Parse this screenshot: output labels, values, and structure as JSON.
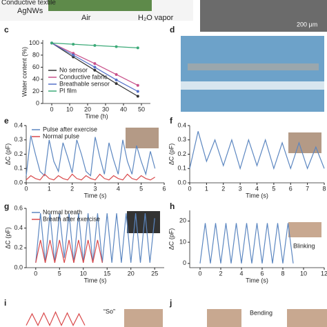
{
  "figure_texts": {
    "top_left": "Conductive textile",
    "agnws": "AgNWs",
    "air": "Air",
    "vapor": "H₂O vapor",
    "scale": "200 μm",
    "i_note": "“So”",
    "j_note": "Bending",
    "h_note": "Blinking"
  },
  "panel_labels": [
    "c",
    "d",
    "e",
    "f",
    "g",
    "h",
    "i",
    "j"
  ],
  "chart_data": [
    {
      "type": "line",
      "xlabel": "Time (h)",
      "ylabel": "Water content (%)",
      "xlim": [
        -5,
        55
      ],
      "ylim": [
        0,
        105
      ],
      "xticks": [
        0,
        10,
        20,
        30,
        40,
        50
      ],
      "yticks": [
        0,
        20,
        40,
        60,
        80,
        100
      ],
      "legend": "lower left",
      "x": [
        0,
        12,
        24,
        36,
        48
      ],
      "series": [
        {
          "name": "No sensor",
          "color": "#333333",
          "values": [
            100,
            77,
            55,
            33,
            12
          ]
        },
        {
          "name": "Conductive fabric",
          "color": "#c8508a",
          "values": [
            100,
            83,
            66,
            48,
            30
          ]
        },
        {
          "name": "Breathable sensor",
          "color": "#5470c8",
          "values": [
            100,
            80,
            60,
            39,
            20
          ]
        },
        {
          "name": "PI film",
          "color": "#3caa78",
          "values": [
            100,
            98,
            96,
            94,
            92
          ]
        }
      ]
    },
    {
      "type": "line",
      "xlabel": "Time (s)",
      "ylabel": "ΔC (pF)",
      "xlim": [
        0,
        6
      ],
      "ylim": [
        0,
        0.4
      ],
      "xticks": [
        0,
        1,
        2,
        3,
        4,
        5,
        6
      ],
      "yticks": [
        {
          "value": 0,
          "label": "0.0"
        },
        0.1,
        0.2,
        0.3,
        0.4
      ],
      "legend": "upper left",
      "x": [
        0,
        0.2,
        0.4,
        0.6,
        0.8,
        1,
        1.2,
        1.4,
        1.6,
        1.8,
        2,
        2.2,
        2.4,
        2.6,
        2.8,
        3,
        3.2,
        3.4,
        3.6,
        3.8,
        4,
        4.2,
        4.4,
        4.6,
        4.8,
        5,
        5.2,
        5.4,
        5.6
      ],
      "series": [
        {
          "name": "Pulse after exercise",
          "color": "#5b86c0",
          "values": [
            0.05,
            0.33,
            0.2,
            0.08,
            0.05,
            0.3,
            0.15,
            0.08,
            0.28,
            0.18,
            0.07,
            0.3,
            0.2,
            0.08,
            0.05,
            0.32,
            0.18,
            0.06,
            0.28,
            0.16,
            0.06,
            0.3,
            0.15,
            0.06,
            0.26,
            0.15,
            0.06,
            0.22,
            0.1
          ]
        },
        {
          "name": "Normal pulse",
          "color": "#d9484a",
          "values": [
            0.02,
            0.05,
            0.03,
            0.02,
            0.06,
            0.03,
            0.02,
            0.05,
            0.03,
            0.02,
            0.06,
            0.03,
            0.02,
            0.05,
            0.03,
            0.02,
            0.06,
            0.03,
            0.02,
            0.05,
            0.03,
            0.02,
            0.06,
            0.03,
            0.02,
            0.05,
            0.03,
            0.02,
            0.04
          ]
        }
      ]
    },
    {
      "type": "line",
      "xlabel": "Time (s)",
      "ylabel": "ΔC (pF)",
      "xlim": [
        0,
        8
      ],
      "ylim": [
        0,
        0.4
      ],
      "xticks": [
        0,
        1,
        2,
        3,
        4,
        5,
        6,
        7,
        8
      ],
      "yticks": [
        {
          "value": 0,
          "label": "0.0"
        },
        0.1,
        0.2,
        0.3,
        0.4
      ],
      "x": [
        0,
        0.5,
        1,
        1.5,
        2,
        2.5,
        3,
        3.5,
        4,
        4.5,
        5,
        5.5,
        6,
        6.5,
        7,
        7.5,
        8
      ],
      "series": [
        {
          "color": "#5b86c0",
          "values": [
            0.1,
            0.36,
            0.15,
            0.3,
            0.12,
            0.3,
            0.1,
            0.3,
            0.12,
            0.3,
            0.1,
            0.28,
            0.1,
            0.28,
            0.1,
            0.25,
            0.1
          ]
        }
      ]
    },
    {
      "type": "line",
      "xlabel": "Time (s)",
      "ylabel": "ΔC (pF)",
      "xlim": [
        -2,
        27
      ],
      "ylim": [
        0,
        0.6
      ],
      "xticks": [
        0,
        5,
        10,
        15,
        20,
        25
      ],
      "yticks": [
        {
          "value": 0,
          "label": "0.0"
        },
        0.2,
        0.4,
        0.6
      ],
      "legend": "upper left",
      "x": [
        0,
        1,
        2,
        3,
        4,
        5,
        6,
        7,
        8,
        9,
        10,
        11,
        12,
        13,
        14,
        15,
        16,
        17,
        18,
        19,
        20,
        21,
        22,
        23,
        24,
        25
      ],
      "series": [
        {
          "name": "Normal breath",
          "color": "#5b86c0",
          "values": [
            0.05,
            0.55,
            0.05,
            0.55,
            0.05,
            0.55,
            0.1,
            0.55,
            0.05,
            0.55,
            0.05,
            0.55,
            0.05,
            0.55,
            0.05,
            0.55,
            0.05,
            0.55,
            0.05,
            0.55,
            0.05,
            0.55,
            0.05,
            0.55,
            0.05,
            0.5
          ]
        },
        {
          "name": "Breath after exercise",
          "color": "#d9484a",
          "values": [
            0.05,
            0.28,
            0.05,
            0.28,
            0.05,
            0.28,
            0.05,
            0.28,
            0.05,
            0.28,
            0.05,
            0.28,
            0.05,
            0.28,
            0.05,
            null,
            null,
            null,
            null,
            null,
            null,
            null,
            null,
            null,
            null,
            null
          ]
        }
      ]
    },
    {
      "type": "line",
      "xlabel": "Time (s)",
      "ylabel": "ΔC (pF)",
      "xlim": [
        -1,
        12
      ],
      "ylim": [
        -2,
        25
      ],
      "xticks": [
        0,
        2,
        4,
        6,
        8,
        10,
        12
      ],
      "yticks": [
        0,
        10,
        20
      ],
      "x": [
        0,
        0.5,
        1,
        1.5,
        2,
        2.5,
        3,
        3.5,
        4,
        4.5,
        5,
        5.5,
        6,
        6.5,
        7,
        7.5,
        8,
        8.5,
        9
      ],
      "series": [
        {
          "color": "#5b86c0",
          "values": [
            0,
            19,
            0,
            19,
            0,
            19,
            0,
            19,
            0,
            19,
            0,
            19,
            0,
            19,
            0,
            19,
            0,
            19,
            0
          ]
        }
      ]
    },
    {
      "type": "line",
      "xlim": [
        0,
        6
      ],
      "ylim": [
        0,
        1
      ],
      "x": [
        0,
        0.5,
        1,
        1.5,
        2,
        2.5,
        3,
        3.5,
        4,
        4.5,
        5
      ],
      "series": [
        {
          "color": "#d9484a",
          "values": [
            0.1,
            0.8,
            0.1,
            0.85,
            0.1,
            0.9,
            0.1,
            0.85,
            0.1,
            0.8,
            0.1
          ]
        }
      ]
    }
  ]
}
